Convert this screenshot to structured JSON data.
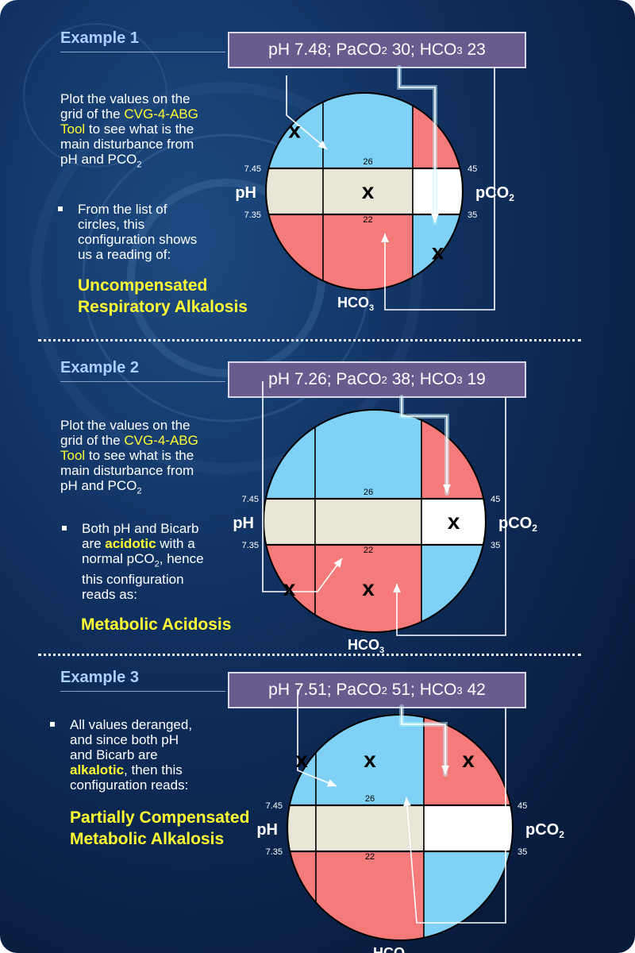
{
  "examples": [
    {
      "title": "Example 1",
      "ph": "7.48",
      "paco2": "30",
      "hco3": "23",
      "intro": {
        "a": "Plot the values on the",
        "b": "grid of the ",
        "tool1": "CVG-4-ABG",
        "tool2": "Tool",
        "c": " to see what is the",
        "d": "main disturbance from",
        "e": "pH and PCO",
        "sub": "2"
      },
      "bullet": [
        "From the list of",
        "circles, this",
        "configuration shows",
        "us a reading of:"
      ],
      "diagnosis": [
        "Uncompensated",
        "Respiratory Alkalosis"
      ],
      "marks": [
        [
          0,
          0
        ],
        [
          1,
          1
        ],
        [
          2,
          2
        ]
      ]
    },
    {
      "title": "Example 2",
      "ph": "7.26",
      "paco2": "38",
      "hco3": "19",
      "intro": {
        "a": "Plot the values on the",
        "b": "grid of the ",
        "tool1": "CVG-4-ABG",
        "tool2": "Tool",
        "c": " to see what is the",
        "d": "main disturbance from",
        "e": "pH and PCO",
        "sub": "2"
      },
      "bullet2": {
        "l1": "Both pH and Bicarb",
        "l2a": "are ",
        "l2b": "acidotic",
        "l2c": " with a",
        "l3a": "normal pCO",
        "l3sub": "2",
        "l3b": ", hence",
        "l4": "this configuration",
        "l5": "reads as:"
      },
      "diagnosis": [
        "Metabolic Acidosis"
      ],
      "marks": [
        [
          2,
          0
        ],
        [
          2,
          1
        ],
        [
          1,
          2
        ]
      ]
    },
    {
      "title": "Example 3",
      "ph": "7.51",
      "paco2": "51",
      "hco3": "42",
      "bullet3": {
        "l1": "All values deranged,",
        "l2": "and since both pH",
        "l3": "and Bicarb are",
        "l4a": "alkalotic",
        "l4b": ", then this",
        "l5": "configuration reads:"
      },
      "diagnosis": [
        "Partially Compensated",
        "Metabolic Alkalosis"
      ],
      "marks": [
        [
          0,
          0
        ],
        [
          0,
          1
        ],
        [
          0,
          2
        ]
      ]
    }
  ],
  "grid": {
    "ph_label": "pH",
    "pco2_label": "pCO",
    "hco3_label": "HCO",
    "sub2": "2",
    "sub3": "3",
    "ph_high": "7.45",
    "ph_low": "7.35",
    "hco3_high": "26",
    "hco3_low": "22",
    "pco2_high": "45",
    "pco2_low": "35",
    "val_ph": "pH",
    "val_paco2": "PaCO",
    "val_hco3": "HCO",
    "mark": "x",
    "colors": {
      "alk": "#7fd2f6",
      "norm": "#e8e6d6",
      "acid": "#f57a7a",
      "white": "#ffffff",
      "text_yellow": "#ffff33",
      "box": "#6a5b8f"
    }
  }
}
